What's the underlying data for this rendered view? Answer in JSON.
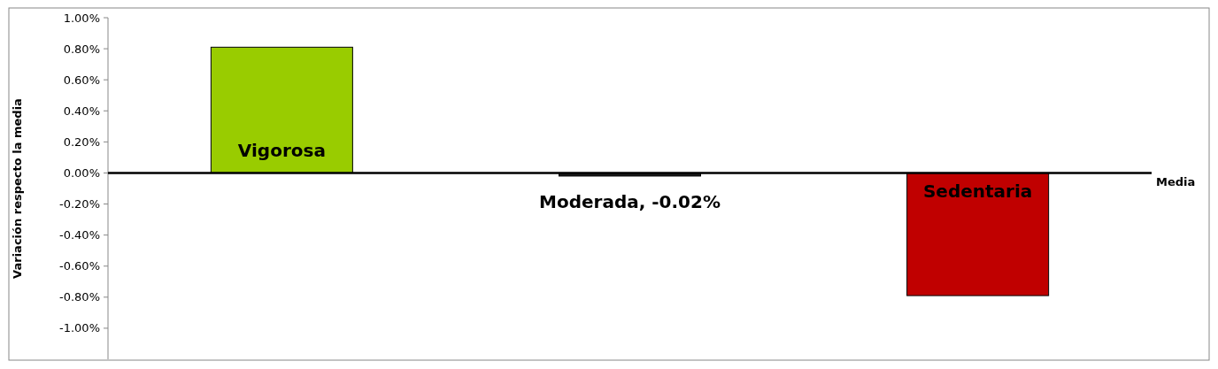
{
  "chart_data": {
    "type": "bar",
    "ylabel": "Variación respecto la media",
    "categories": [
      null,
      null,
      null
    ],
    "values": [
      0.81,
      -0.02,
      -0.79
    ],
    "colors": [
      "#99cc00",
      "#1a1a1a",
      "#c00000"
    ],
    "value_labels": [
      "Vigorosa",
      "Moderada, -0.02%",
      "Sedentaria"
    ],
    "ylim": [
      -1.2,
      1.0
    ],
    "yticks": [
      {
        "value": 1,
        "label": "1.00%"
      },
      {
        "value": 0.8,
        "label": "0.80%"
      },
      {
        "value": 0.6,
        "label": "0.60%"
      },
      {
        "value": 0.4,
        "label": "0.40%"
      },
      {
        "value": 0.2,
        "label": "0.20%"
      },
      {
        "value": 0,
        "label": "0.00%"
      },
      {
        "value": -0.2,
        "label": "-0.20%"
      },
      {
        "value": -0.4,
        "label": "-0.40%"
      },
      {
        "value": -0.6,
        "label": "-0.60%"
      },
      {
        "value": -0.8,
        "label": "-0.80%"
      },
      {
        "value": -1,
        "label": "-1.00%"
      }
    ],
    "ref_lines": [
      {
        "axis": "y",
        "value": 0,
        "label": "Media",
        "color": "#000000"
      }
    ],
    "grid": false
  }
}
